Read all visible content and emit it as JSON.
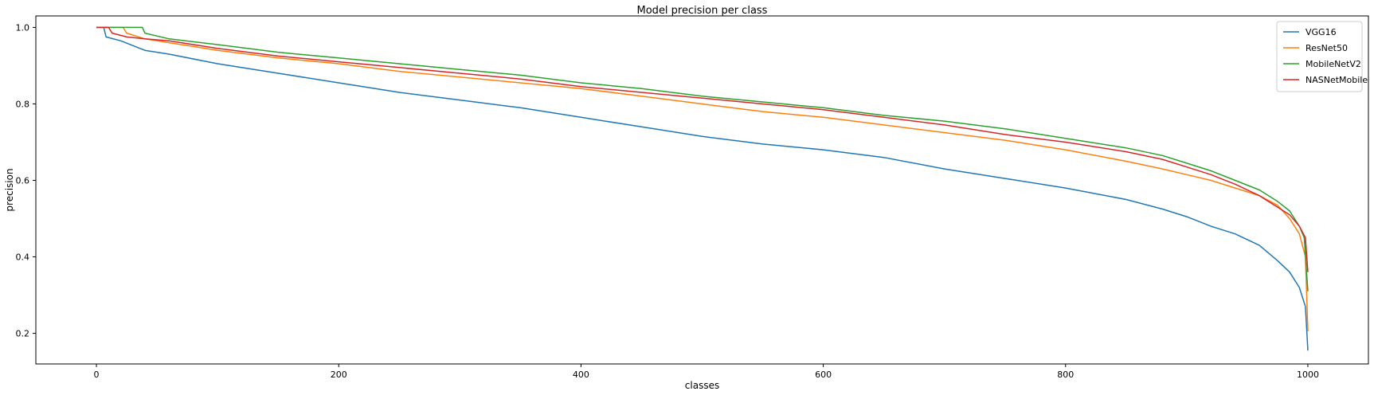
{
  "chart_data": {
    "type": "line",
    "title": "Model precision per class",
    "xlabel": "classes",
    "ylabel": "precision",
    "xlim": [
      -50,
      1050
    ],
    "ylim": [
      0.12,
      1.03
    ],
    "xticks": [
      0,
      200,
      400,
      600,
      800,
      1000
    ],
    "yticks": [
      0.2,
      0.4,
      0.6,
      0.8,
      1.0
    ],
    "xtick_labels": [
      "0",
      "200",
      "400",
      "600",
      "800",
      "1000"
    ],
    "ytick_labels": [
      "0.2",
      "0.4",
      "0.6",
      "0.8",
      "1.0"
    ],
    "grid": false,
    "legend_position": "top-right",
    "series": [
      {
        "name": "VGG16",
        "color": "#1f77b4",
        "points": [
          [
            0,
            1.0
          ],
          [
            6,
            1.0
          ],
          [
            8,
            0.975
          ],
          [
            20,
            0.965
          ],
          [
            40,
            0.94
          ],
          [
            60,
            0.93
          ],
          [
            100,
            0.905
          ],
          [
            150,
            0.88
          ],
          [
            200,
            0.855
          ],
          [
            250,
            0.83
          ],
          [
            300,
            0.81
          ],
          [
            350,
            0.79
          ],
          [
            400,
            0.765
          ],
          [
            450,
            0.74
          ],
          [
            500,
            0.715
          ],
          [
            550,
            0.695
          ],
          [
            600,
            0.68
          ],
          [
            650,
            0.66
          ],
          [
            700,
            0.63
          ],
          [
            750,
            0.605
          ],
          [
            800,
            0.58
          ],
          [
            850,
            0.55
          ],
          [
            880,
            0.525
          ],
          [
            900,
            0.505
          ],
          [
            920,
            0.48
          ],
          [
            940,
            0.46
          ],
          [
            960,
            0.43
          ],
          [
            975,
            0.39
          ],
          [
            985,
            0.36
          ],
          [
            993,
            0.32
          ],
          [
            998,
            0.27
          ],
          [
            1000,
            0.155
          ]
        ]
      },
      {
        "name": "ResNet50",
        "color": "#ff7f0e",
        "points": [
          [
            0,
            1.0
          ],
          [
            22,
            1.0
          ],
          [
            25,
            0.985
          ],
          [
            40,
            0.97
          ],
          [
            60,
            0.96
          ],
          [
            100,
            0.94
          ],
          [
            150,
            0.92
          ],
          [
            200,
            0.905
          ],
          [
            250,
            0.885
          ],
          [
            300,
            0.87
          ],
          [
            350,
            0.855
          ],
          [
            400,
            0.84
          ],
          [
            450,
            0.82
          ],
          [
            500,
            0.8
          ],
          [
            550,
            0.78
          ],
          [
            600,
            0.765
          ],
          [
            650,
            0.745
          ],
          [
            700,
            0.725
          ],
          [
            750,
            0.705
          ],
          [
            800,
            0.68
          ],
          [
            850,
            0.65
          ],
          [
            880,
            0.63
          ],
          [
            900,
            0.615
          ],
          [
            920,
            0.6
          ],
          [
            940,
            0.58
          ],
          [
            960,
            0.56
          ],
          [
            975,
            0.535
          ],
          [
            985,
            0.5
          ],
          [
            993,
            0.46
          ],
          [
            998,
            0.4
          ],
          [
            1000,
            0.205
          ]
        ]
      },
      {
        "name": "MobileNetV2",
        "color": "#2ca02c",
        "points": [
          [
            0,
            1.0
          ],
          [
            38,
            1.0
          ],
          [
            40,
            0.985
          ],
          [
            60,
            0.97
          ],
          [
            100,
            0.955
          ],
          [
            150,
            0.935
          ],
          [
            200,
            0.92
          ],
          [
            250,
            0.905
          ],
          [
            300,
            0.89
          ],
          [
            350,
            0.875
          ],
          [
            400,
            0.855
          ],
          [
            450,
            0.84
          ],
          [
            500,
            0.82
          ],
          [
            550,
            0.805
          ],
          [
            600,
            0.79
          ],
          [
            650,
            0.77
          ],
          [
            700,
            0.755
          ],
          [
            750,
            0.735
          ],
          [
            800,
            0.71
          ],
          [
            850,
            0.685
          ],
          [
            880,
            0.665
          ],
          [
            900,
            0.645
          ],
          [
            920,
            0.625
          ],
          [
            940,
            0.6
          ],
          [
            960,
            0.575
          ],
          [
            975,
            0.545
          ],
          [
            985,
            0.52
          ],
          [
            993,
            0.48
          ],
          [
            997,
            0.45
          ],
          [
            1000,
            0.31
          ]
        ]
      },
      {
        "name": "NASNetMobile",
        "color": "#d62728",
        "points": [
          [
            0,
            1.0
          ],
          [
            10,
            1.0
          ],
          [
            13,
            0.985
          ],
          [
            25,
            0.975
          ],
          [
            40,
            0.97
          ],
          [
            60,
            0.965
          ],
          [
            100,
            0.945
          ],
          [
            150,
            0.925
          ],
          [
            200,
            0.91
          ],
          [
            250,
            0.895
          ],
          [
            300,
            0.88
          ],
          [
            350,
            0.865
          ],
          [
            400,
            0.845
          ],
          [
            450,
            0.83
          ],
          [
            500,
            0.815
          ],
          [
            550,
            0.8
          ],
          [
            600,
            0.785
          ],
          [
            650,
            0.765
          ],
          [
            700,
            0.745
          ],
          [
            750,
            0.72
          ],
          [
            800,
            0.7
          ],
          [
            850,
            0.675
          ],
          [
            880,
            0.655
          ],
          [
            900,
            0.635
          ],
          [
            920,
            0.615
          ],
          [
            940,
            0.59
          ],
          [
            960,
            0.56
          ],
          [
            975,
            0.53
          ],
          [
            985,
            0.51
          ],
          [
            993,
            0.48
          ],
          [
            998,
            0.45
          ],
          [
            1000,
            0.36
          ]
        ]
      }
    ]
  }
}
